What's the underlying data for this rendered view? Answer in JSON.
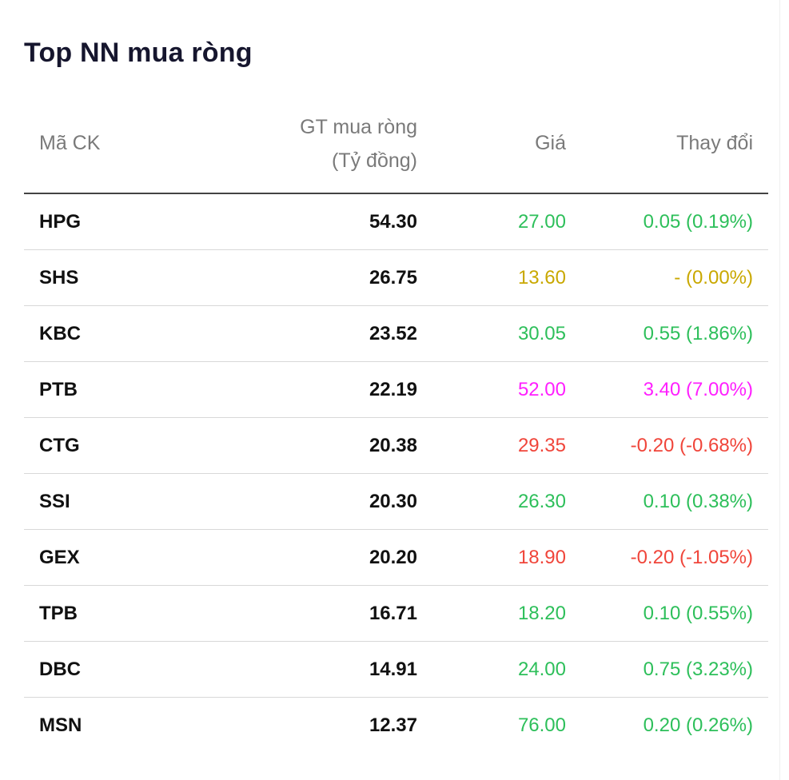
{
  "title": "Top NN mua ròng",
  "headers": {
    "ma_ck": "Mã CK",
    "gt_line1": "GT mua ròng",
    "gt_line2": "(Tỷ đồng)",
    "gia": "Giá",
    "thay_doi": "Thay đổi"
  },
  "colors": {
    "up": "#2dbf5a",
    "ref": "#c9a800",
    "ceiling": "#ff1fff",
    "down": "#f0453a"
  },
  "rows": [
    {
      "ma": "HPG",
      "gt": "54.30",
      "gia": "27.00",
      "thay_doi": "0.05 (0.19%)",
      "status": "up"
    },
    {
      "ma": "SHS",
      "gt": "26.75",
      "gia": "13.60",
      "thay_doi": "- (0.00%)",
      "status": "ref"
    },
    {
      "ma": "KBC",
      "gt": "23.52",
      "gia": "30.05",
      "thay_doi": "0.55 (1.86%)",
      "status": "up"
    },
    {
      "ma": "PTB",
      "gt": "22.19",
      "gia": "52.00",
      "thay_doi": "3.40 (7.00%)",
      "status": "ceiling"
    },
    {
      "ma": "CTG",
      "gt": "20.38",
      "gia": "29.35",
      "thay_doi": "-0.20 (-0.68%)",
      "status": "down"
    },
    {
      "ma": "SSI",
      "gt": "20.30",
      "gia": "26.30",
      "thay_doi": "0.10 (0.38%)",
      "status": "up"
    },
    {
      "ma": "GEX",
      "gt": "20.20",
      "gia": "18.90",
      "thay_doi": "-0.20 (-1.05%)",
      "status": "down"
    },
    {
      "ma": "TPB",
      "gt": "16.71",
      "gia": "18.20",
      "thay_doi": "0.10 (0.55%)",
      "status": "up"
    },
    {
      "ma": "DBC",
      "gt": "14.91",
      "gia": "24.00",
      "thay_doi": "0.75 (3.23%)",
      "status": "up"
    },
    {
      "ma": "MSN",
      "gt": "12.37",
      "gia": "76.00",
      "thay_doi": "0.20 (0.26%)",
      "status": "up"
    }
  ]
}
